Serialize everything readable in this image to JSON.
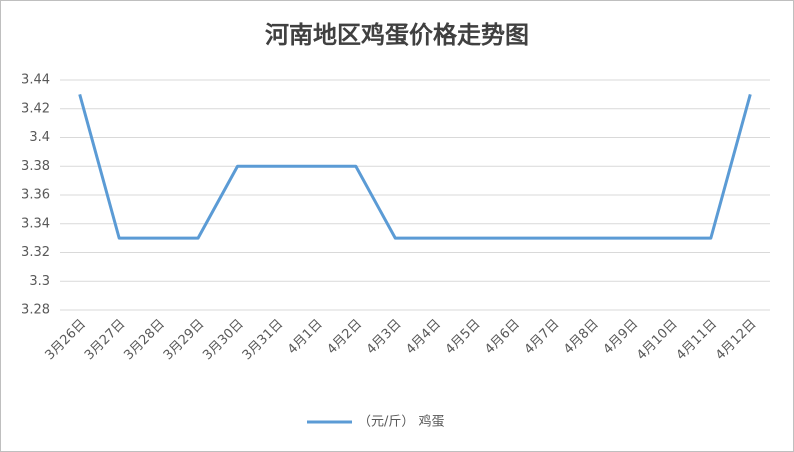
{
  "chart_data": {
    "type": "line",
    "title": "河南地区鸡蛋价格走势图",
    "categories": [
      "3月26日",
      "3月27日",
      "3月28日",
      "3月29日",
      "3月30日",
      "3月31日",
      "4月1日",
      "4月2日",
      "4月3日",
      "4月4日",
      "4月5日",
      "4月6日",
      "4月7日",
      "4月8日",
      "4月9日",
      "4月10日",
      "4月11日",
      "4月12日"
    ],
    "series": [
      {
        "name": "（元/斤） 鸡蛋",
        "color": "#5b9bd5",
        "values": [
          3.43,
          3.33,
          3.33,
          3.33,
          3.38,
          3.38,
          3.38,
          3.38,
          3.33,
          3.33,
          3.33,
          3.33,
          3.33,
          3.33,
          3.33,
          3.33,
          3.33,
          3.43
        ]
      }
    ],
    "ylim": [
      3.28,
      3.44
    ],
    "yticks": [
      3.28,
      3.3,
      3.32,
      3.34,
      3.36,
      3.38,
      3.4,
      3.42,
      3.44
    ],
    "grid": true,
    "legend": "bottom"
  }
}
